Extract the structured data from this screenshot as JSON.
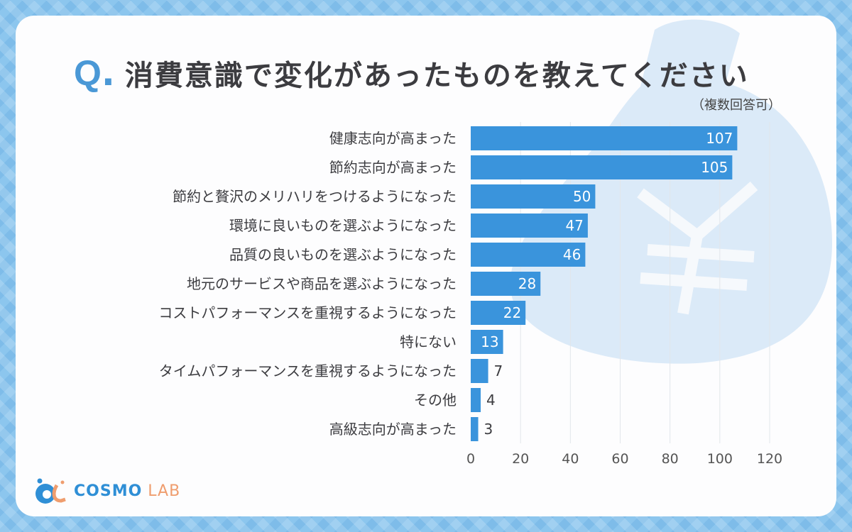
{
  "title": {
    "prefix": "Q",
    "dot": ".",
    "text": "消費意識で変化があったものを教えてください",
    "note": "（複数回答可）"
  },
  "logo": {
    "name": "COSMO",
    "suffix": "LAB"
  },
  "colors": {
    "bar": "#3a94dc",
    "accent": "#4a98d6",
    "text": "#3c3c40"
  },
  "chart_data": {
    "type": "bar",
    "orientation": "horizontal",
    "title": "消費意識で変化があったものを教えてください",
    "categories": [
      "健康志向が高まった",
      "節約志向が高まった",
      "節約と贅沢のメリハリをつけるようになった",
      "環境に良いものを選ぶようになった",
      "品質の良いものを選ぶようになった",
      "地元のサービスや商品を選ぶようになった",
      "コストパフォーマンスを重視するようになった",
      "特にない",
      "タイムパフォーマンスを重視するようになった",
      "その他",
      "高級志向が高まった"
    ],
    "values": [
      107,
      105,
      50,
      47,
      46,
      28,
      22,
      13,
      7,
      4,
      3
    ],
    "xlim": [
      0,
      120
    ],
    "xticks": [
      0,
      20,
      40,
      60,
      80,
      100,
      120
    ],
    "grid": true,
    "xlabel": "",
    "ylabel": ""
  }
}
